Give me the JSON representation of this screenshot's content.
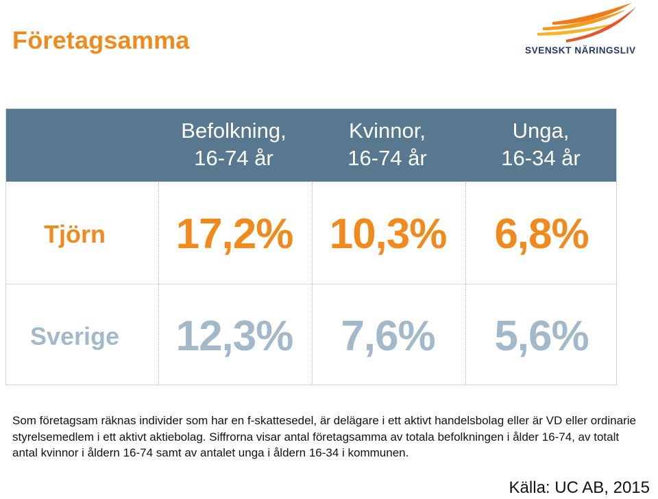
{
  "slide": {
    "title": "Företagsamma",
    "logo_text": "SVENSKT NÄRINGSLIV",
    "accent_color": "#F08A1D",
    "header_color": "#587890",
    "secondary_value_color": "#A3B8C9"
  },
  "table": {
    "columns": [
      {
        "line1": "Befolkning,",
        "line2": "16-74 år"
      },
      {
        "line1": "Kvinnor,",
        "line2": "16-74 år"
      },
      {
        "line1": "Unga,",
        "line2": "16-34 år"
      }
    ],
    "rows": [
      {
        "label": "Tjörn",
        "values": [
          "17,2%",
          "10,3%",
          "6,8%"
        ]
      },
      {
        "label": "Sverige",
        "values": [
          "12,3%",
          "7,6%",
          "5,6%"
        ]
      }
    ]
  },
  "description": "Som företagsam räknas individer som har en f-skattesedel, är delägare i ett aktivt handelsbolag eller är VD eller ordinarie styrelsemedlem i ett aktivt aktiebolag. Siffrorna visar antal företagsamma av totala befolkningen i ålder 16-74, av totalt antal kvinnor i åldern 16-74 samt av antalet unga i åldern 16-34 i kommunen.",
  "source": "Källa: UC AB, 2015"
}
